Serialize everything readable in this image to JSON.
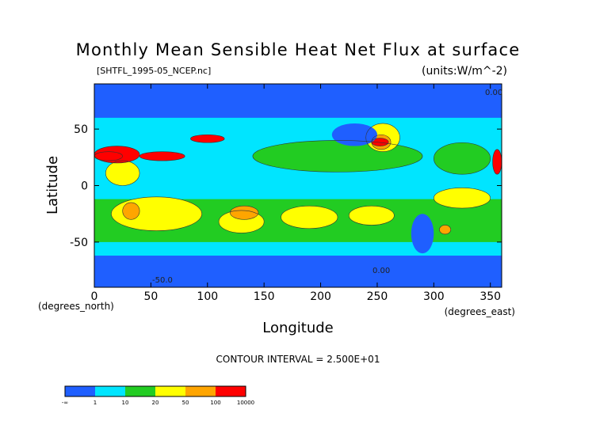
{
  "chart_data": {
    "type": "heatmap",
    "title": "Monthly Mean Sensible Heat Net Flux at surface",
    "file_label": "[SHTFL_1995-05_NCEP.nc]",
    "units_label": "(units:W/m^-2)",
    "xlabel": "Longitude",
    "ylabel": "Latitude",
    "x_unit_label": "(degrees_east)",
    "y_unit_label": "(degrees_north)",
    "xlim": [
      0,
      360
    ],
    "ylim": [
      -90,
      90
    ],
    "x_ticks": [
      0,
      50,
      100,
      150,
      200,
      250,
      300,
      350
    ],
    "y_ticks": [
      50,
      0,
      -50
    ],
    "contour_interval_text": "CONTOUR INTERVAL = 2.500E+01",
    "contour_labels": [
      "0.00",
      "0.00",
      "-50.0"
    ],
    "colorbar": {
      "labels": [
        "-∞",
        "1",
        "10",
        "20",
        "50",
        "100",
        "10000"
      ],
      "colors": [
        "#1f5fff",
        "#00e5ff",
        "#22cc22",
        "#ffff00",
        "#ffa500",
        "#ff0000"
      ]
    },
    "regions": [
      {
        "level": 1,
        "lon": [
          0,
          360
        ],
        "lat": [
          -90,
          90
        ]
      },
      {
        "level": 1,
        "lon": [
          0,
          360
        ],
        "lat": [
          -42,
          40
        ]
      },
      {
        "level": 2,
        "lon": [
          0,
          360
        ],
        "lat": [
          -50,
          -12
        ]
      },
      {
        "level": 2,
        "lon": [
          140,
          290
        ],
        "lat": [
          12,
          40
        ]
      },
      {
        "level": 2,
        "lon": [
          300,
          350
        ],
        "lat": [
          10,
          38
        ]
      },
      {
        "level": 3,
        "lon": [
          15,
          95
        ],
        "lat": [
          -40,
          -10
        ]
      },
      {
        "level": 3,
        "lon": [
          110,
          150
        ],
        "lat": [
          -42,
          -22
        ]
      },
      {
        "level": 3,
        "lon": [
          165,
          215
        ],
        "lat": [
          -38,
          -18
        ]
      },
      {
        "level": 3,
        "lon": [
          225,
          265
        ],
        "lat": [
          -35,
          -18
        ]
      },
      {
        "level": 3,
        "lon": [
          300,
          350
        ],
        "lat": [
          -20,
          -2
        ]
      },
      {
        "level": 3,
        "lon": [
          240,
          270
        ],
        "lat": [
          30,
          55
        ]
      },
      {
        "level": 3,
        "lon": [
          10,
          40
        ],
        "lat": [
          0,
          22
        ]
      },
      {
        "level": 4,
        "lon": [
          25,
          40
        ],
        "lat": [
          -30,
          -15
        ]
      },
      {
        "level": 4,
        "lon": [
          120,
          145
        ],
        "lat": [
          -30,
          -18
        ]
      },
      {
        "level": 4,
        "lon": [
          305,
          315
        ],
        "lat": [
          -43,
          -35
        ]
      },
      {
        "level": 4,
        "lon": [
          245,
          262
        ],
        "lat": [
          32,
          45
        ]
      },
      {
        "level": 4,
        "lon": [
          0,
          25
        ],
        "lat": [
          22,
          30
        ]
      },
      {
        "level": 5,
        "lon": [
          0,
          40
        ],
        "lat": [
          20,
          35
        ]
      },
      {
        "level": 5,
        "lon": [
          40,
          80
        ],
        "lat": [
          22,
          30
        ]
      },
      {
        "level": 5,
        "lon": [
          85,
          115
        ],
        "lat": [
          38,
          45
        ]
      },
      {
        "level": 5,
        "lon": [
          245,
          260
        ],
        "lat": [
          35,
          42
        ]
      },
      {
        "level": 5,
        "lon": [
          352,
          360
        ],
        "lat": [
          10,
          32
        ]
      },
      {
        "level": 0,
        "lon": [
          0,
          360
        ],
        "lat": [
          60,
          90
        ]
      },
      {
        "level": 0,
        "lon": [
          0,
          360
        ],
        "lat": [
          -90,
          -62
        ]
      },
      {
        "level": 0,
        "lon": [
          210,
          250
        ],
        "lat": [
          35,
          55
        ]
      },
      {
        "level": 0,
        "lon": [
          280,
          300
        ],
        "lat": [
          -60,
          -25
        ]
      }
    ]
  }
}
